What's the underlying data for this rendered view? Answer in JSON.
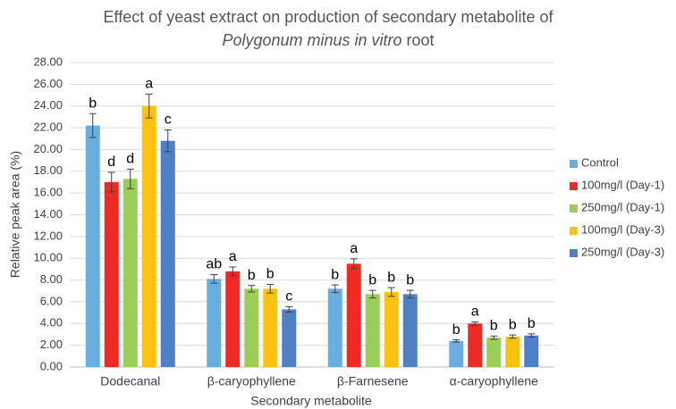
{
  "chart_data": {
    "type": "bar",
    "title": {
      "line1": "Effect of yeast extract on production of secondary metabolite of",
      "italic": "Polygonum minus in vitro",
      "end": "root"
    },
    "x_label": "Secondary metabolite",
    "y_label": "Relative peak area (%)",
    "categories": [
      "Dodecanal",
      "β-caryophyllene",
      "β-Farnesene",
      "α-caryophyllene"
    ],
    "series": [
      {
        "name": "Control",
        "color": "#6aaee0",
        "values": [
          22.2,
          8.1,
          7.2,
          2.4
        ],
        "errors": [
          1.1,
          0.4,
          0.35,
          0.1
        ],
        "letters": [
          "b",
          "ab",
          "b",
          "b"
        ]
      },
      {
        "name": "100mg/l (Day-1)",
        "color": "#ee2a24",
        "values": [
          17.0,
          8.8,
          9.5,
          4.0
        ],
        "errors": [
          0.9,
          0.4,
          0.45,
          0.15
        ],
        "letters": [
          "d",
          "a",
          "a",
          "a"
        ]
      },
      {
        "name": "250mg/l (Day-1)",
        "color": "#9acd5a",
        "values": [
          17.3,
          7.2,
          6.7,
          2.7
        ],
        "errors": [
          0.9,
          0.3,
          0.35,
          0.15
        ],
        "letters": [
          "d",
          "b",
          "b",
          "b"
        ]
      },
      {
        "name": "100mg/l (Day-3)",
        "color": "#fdc20f",
        "values": [
          24.0,
          7.2,
          6.9,
          2.8
        ],
        "errors": [
          1.1,
          0.4,
          0.4,
          0.15
        ],
        "letters": [
          "a",
          "b",
          "b",
          "b"
        ]
      },
      {
        "name": "250mg/l (Day-3)",
        "color": "#4f7fc4",
        "values": [
          20.8,
          5.3,
          6.7,
          2.9
        ],
        "errors": [
          1.0,
          0.25,
          0.35,
          0.15
        ],
        "letters": [
          "c",
          "c",
          "b",
          "b"
        ]
      }
    ],
    "ylim": [
      0,
      28
    ],
    "yticks": [
      {
        "value": 0,
        "label": "0.00"
      },
      {
        "value": 2,
        "label": "2.00"
      },
      {
        "value": 4,
        "label": "4.00"
      },
      {
        "value": 6,
        "label": "6.00"
      },
      {
        "value": 8,
        "label": "8.00"
      },
      {
        "value": 10,
        "label": "10.00"
      },
      {
        "value": 12,
        "label": "12.00"
      },
      {
        "value": 14,
        "label": "14.00"
      },
      {
        "value": 16,
        "label": "16.00"
      },
      {
        "value": 18,
        "label": "18.00"
      },
      {
        "value": 20,
        "label": "20.00"
      },
      {
        "value": 22,
        "label": "22.00"
      },
      {
        "value": 24,
        "label": "24.00"
      },
      {
        "value": 26,
        "label": "26.00"
      },
      {
        "value": 28,
        "label": "28.00"
      }
    ],
    "grid": true,
    "legend": "right"
  }
}
